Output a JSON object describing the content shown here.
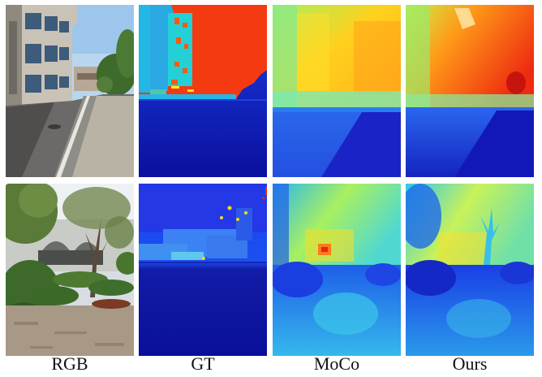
{
  "columns": [
    {
      "key": "rgb",
      "label": "RGB"
    },
    {
      "key": "gt",
      "label": "GT"
    },
    {
      "key": "moco",
      "label": "MoCo"
    },
    {
      "key": "ours",
      "label": "Ours"
    }
  ],
  "rows": [
    {
      "scene": "street-with-buildings"
    },
    {
      "scene": "garden-with-tree"
    }
  ],
  "colormap": {
    "far": "#e8281a",
    "mid_far": "#f4b41c",
    "mid": "#b9f25a",
    "mid_near": "#35d6e8",
    "near": "#1c43e0",
    "nearest": "#0a0f9e"
  }
}
